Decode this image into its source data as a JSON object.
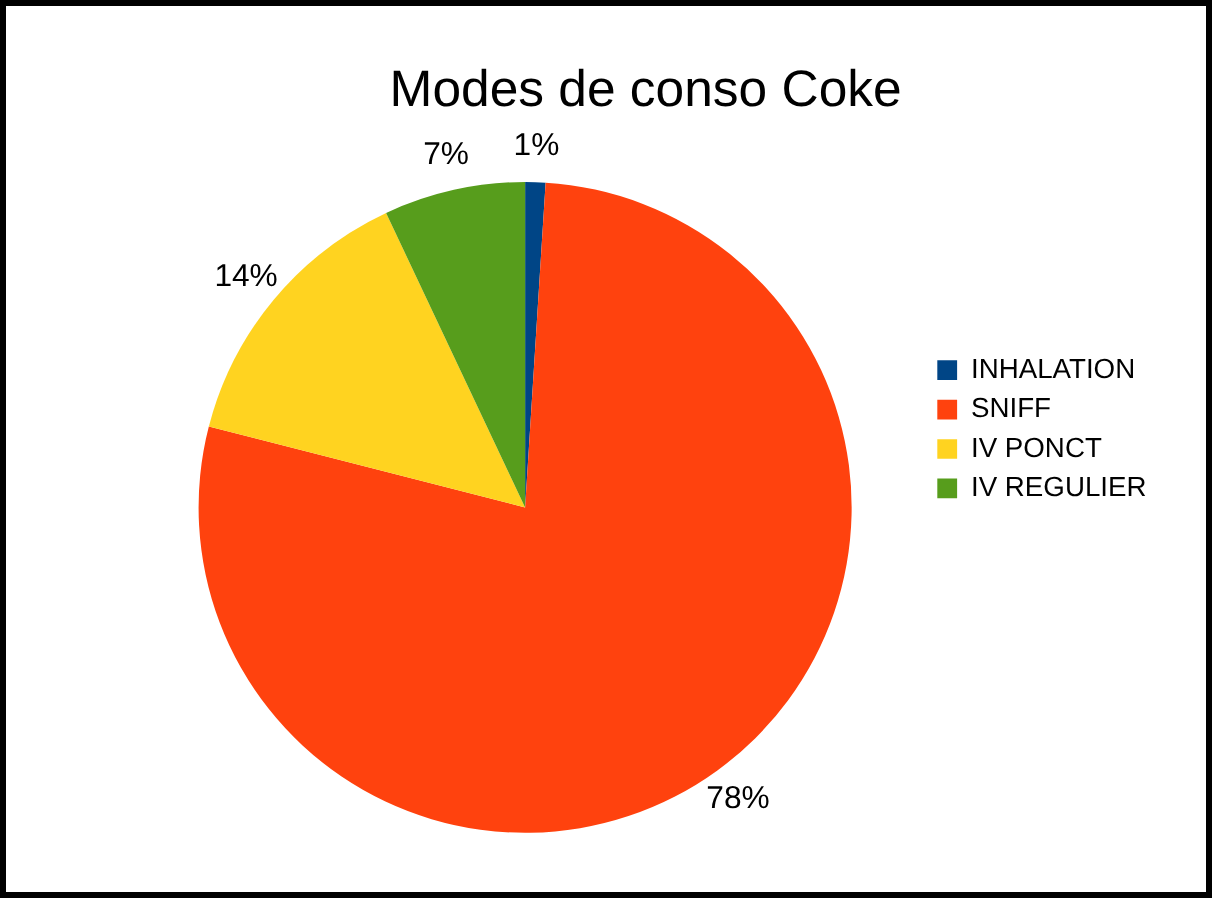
{
  "chart_data": {
    "type": "pie",
    "title": "Modes de conso Coke",
    "categories": [
      "INHALATION",
      "SNIFF",
      "IV PONCT",
      "IV REGULIER"
    ],
    "values": [
      1,
      78,
      14,
      7
    ],
    "colors": [
      "#004586",
      "#ff420e",
      "#ffd320",
      "#579d1c"
    ],
    "value_labels": [
      "1%",
      "78%",
      "14%",
      "7%"
    ],
    "legend": "right"
  }
}
